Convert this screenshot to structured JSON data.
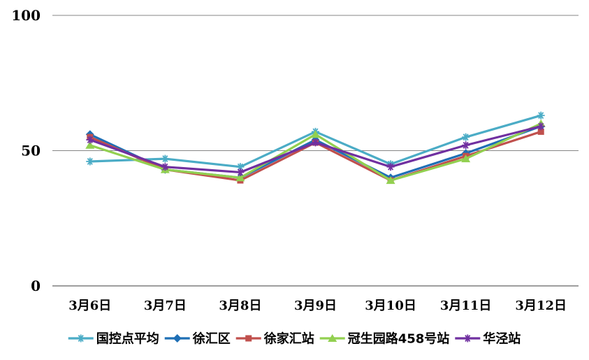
{
  "chart_data": {
    "type": "line",
    "title": "",
    "xlabel": "",
    "ylabel": "",
    "ylim": [
      0,
      100
    ],
    "yticks": [
      "0",
      "50",
      "100"
    ],
    "grid": "horizontal major gridlines",
    "legend_position": "bottom",
    "categories": [
      "3月6日",
      "3月7日",
      "3月8日",
      "3月9日",
      "3月10日",
      "3月11日",
      "3月12日"
    ],
    "series": [
      {
        "name": "国控点平均",
        "color": "#4BACC6",
        "marker": "asterisk",
        "values": [
          46,
          47,
          44,
          57,
          45,
          55,
          63
        ]
      },
      {
        "name": "徐汇区",
        "color": "#1F6FB5",
        "marker": "diamond",
        "values": [
          56,
          43,
          40,
          54,
          40,
          49,
          59
        ]
      },
      {
        "name": "徐家汇站",
        "color": "#C0504D",
        "marker": "square",
        "values": [
          55,
          43,
          39,
          53,
          39,
          48,
          57
        ]
      },
      {
        "name": "冠生园路458号站",
        "color": "#92D050",
        "marker": "triangle",
        "values": [
          52,
          43,
          40,
          56,
          39,
          47,
          60
        ]
      },
      {
        "name": "华泾站",
        "color": "#7030A0",
        "marker": "asterisk",
        "values": [
          54,
          44,
          42,
          53,
          44,
          52,
          59
        ]
      }
    ]
  }
}
